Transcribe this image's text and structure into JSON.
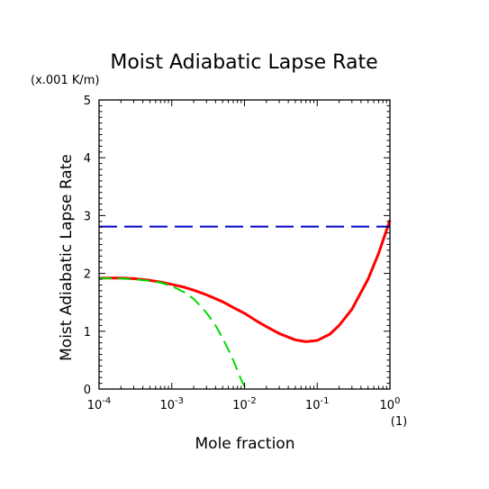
{
  "chart_data": {
    "type": "line",
    "title": "Moist Adiabatic Lapse Rate",
    "subtitle": "(x.001 K/m)",
    "xlabel": "Mole fraction",
    "xunit": "(1)",
    "ylabel": "Moist Adiabatic Lapse Rate",
    "xscale": "log",
    "xlim": [
      0.0001,
      1
    ],
    "ylim": [
      0,
      5
    ],
    "x_ticks": [
      "10",
      "10",
      "10",
      "10",
      "10"
    ],
    "x_tick_exponents": [
      "-4",
      "-3",
      "-2",
      "-1",
      "0"
    ],
    "y_ticks": [
      "0",
      "1",
      "2",
      "3",
      "4",
      "5"
    ],
    "grid": false,
    "series": [
      {
        "color": "#ff0000",
        "style": "solid",
        "x": [
          0.0001,
          0.0002,
          0.0003,
          0.0005,
          0.0007,
          0.001,
          0.0015,
          0.002,
          0.003,
          0.005,
          0.007,
          0.01,
          0.015,
          0.02,
          0.03,
          0.05,
          0.07,
          0.1,
          0.15,
          0.2,
          0.3,
          0.5,
          0.7,
          1.0
        ],
        "y": [
          1.92,
          1.92,
          1.91,
          1.88,
          1.85,
          1.81,
          1.76,
          1.71,
          1.63,
          1.51,
          1.41,
          1.31,
          1.17,
          1.08,
          0.96,
          0.85,
          0.82,
          0.84,
          0.95,
          1.1,
          1.38,
          1.9,
          2.35,
          2.92
        ]
      },
      {
        "color": "#00dd00",
        "style": "dashed",
        "x": [
          0.0001,
          0.0002,
          0.0003,
          0.0005,
          0.0007,
          0.001,
          0.0015,
          0.002,
          0.003,
          0.004,
          0.005,
          0.006,
          0.007,
          0.008,
          0.009,
          0.0105
        ],
        "y": [
          1.92,
          1.91,
          1.9,
          1.87,
          1.84,
          1.78,
          1.67,
          1.56,
          1.32,
          1.1,
          0.88,
          0.68,
          0.5,
          0.32,
          0.16,
          0.0
        ]
      },
      {
        "color": "#0000cc",
        "style": "dashed",
        "x": [
          0.0001,
          1.0
        ],
        "y": [
          2.81,
          2.81
        ]
      }
    ]
  }
}
